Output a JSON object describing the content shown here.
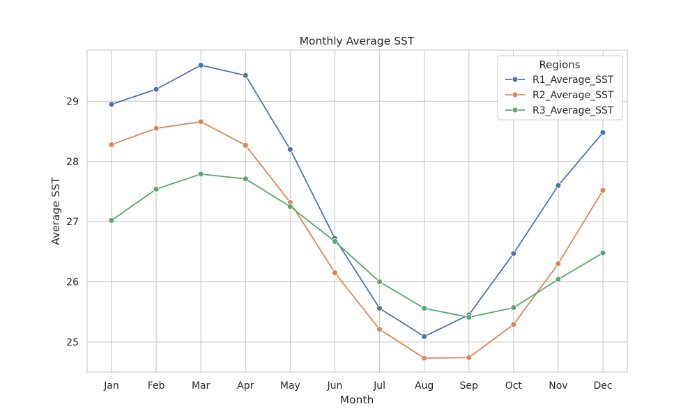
{
  "chart_data": {
    "type": "line",
    "title": "Monthly Average SST",
    "xlabel": "Month",
    "ylabel": "Average SST",
    "categories": [
      "Jan",
      "Feb",
      "Mar",
      "Apr",
      "May",
      "Jun",
      "Jul",
      "Aug",
      "Sep",
      "Oct",
      "Nov",
      "Dec"
    ],
    "ylim": [
      24.5,
      29.85
    ],
    "yticks": [
      25,
      26,
      27,
      28,
      29
    ],
    "grid": true,
    "legend": {
      "title": "Regions",
      "placement": "top-right"
    },
    "series": [
      {
        "name": "R1_Average_SST",
        "color": "#4c72b0",
        "values": [
          28.95,
          29.2,
          29.6,
          29.43,
          28.2,
          26.72,
          25.56,
          25.09,
          25.45,
          26.47,
          27.6,
          28.48
        ]
      },
      {
        "name": "R2_Average_SST",
        "color": "#dd8452",
        "values": [
          28.28,
          28.55,
          28.66,
          28.27,
          27.32,
          26.15,
          25.21,
          24.73,
          24.74,
          25.29,
          26.3,
          27.52
        ]
      },
      {
        "name": "R3_Average_SST",
        "color": "#55a868",
        "values": [
          27.02,
          27.54,
          27.79,
          27.71,
          27.25,
          26.67,
          26.0,
          25.56,
          25.41,
          25.57,
          26.04,
          26.48
        ]
      }
    ]
  }
}
